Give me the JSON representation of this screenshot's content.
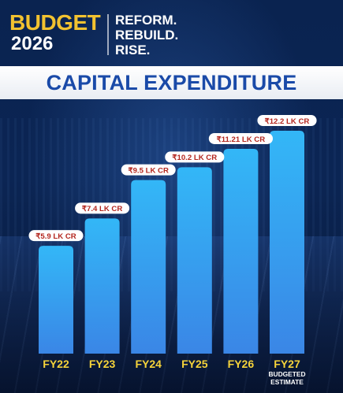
{
  "header": {
    "logo_word": "BUDGET",
    "logo_year": "2026",
    "tagline_line1": "REFORM.",
    "tagline_line2": "REBUILD.",
    "tagline_line3": "RISE."
  },
  "colors": {
    "bar_top": "#33b7f7",
    "bar_bottom": "#3a86e6",
    "label_text": "#b3261e",
    "category_text": "#f5d33a",
    "banner_text": "#1a4aa8"
  },
  "chart_data": {
    "type": "bar",
    "title": "CAPITAL EXPENDITURE",
    "categories": [
      "FY22",
      "FY23",
      "FY24",
      "FY25",
      "FY26",
      "FY27"
    ],
    "category_sublabels": [
      "",
      "",
      "",
      "",
      "",
      "BUDGETED ESTIMATE"
    ],
    "values": [
      5.9,
      7.4,
      9.5,
      10.2,
      11.21,
      12.2
    ],
    "data_labels": [
      "₹5.9 LK CR",
      "₹7.4 LK CR",
      "₹9.5 LK CR",
      "₹10.2 LK CR",
      "₹11.21 LK CR",
      "₹12.2 LK CR"
    ],
    "unit": "LK CR",
    "ylim": [
      0,
      12.2
    ],
    "grid": false,
    "legend": "none"
  }
}
